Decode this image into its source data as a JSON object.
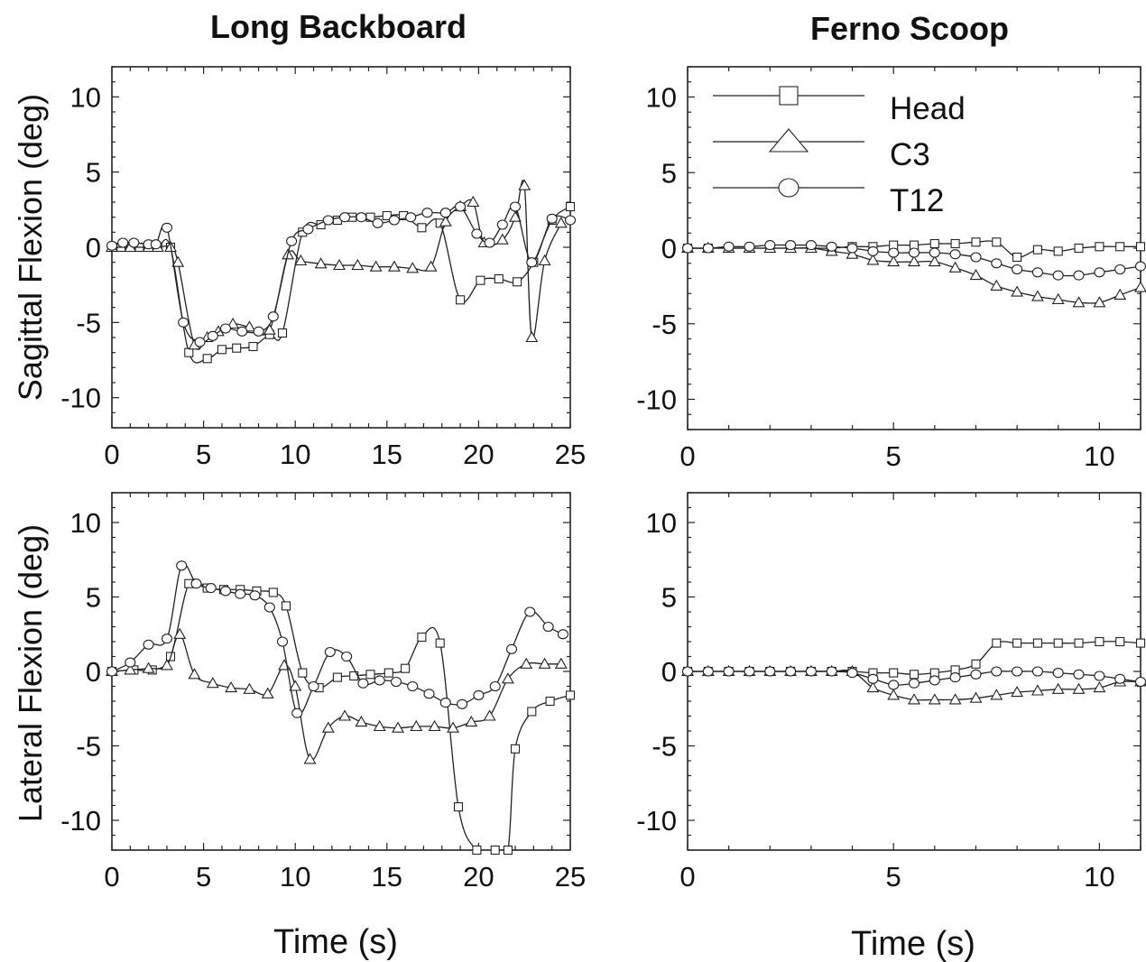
{
  "figure": {
    "col_titles": [
      "Long Backboard",
      "Ferno Scoop"
    ],
    "row_ylabels": [
      "Sagittal Flexion (deg)",
      "Lateral Flexion (deg)"
    ],
    "xlabel": "Time (s)"
  },
  "legend": {
    "entries": [
      {
        "label": "Head",
        "marker": "square"
      },
      {
        "label": "C3",
        "marker": "triangle"
      },
      {
        "label": "T12",
        "marker": "circle"
      }
    ]
  },
  "chart_data": [
    {
      "type": "line",
      "title": "Long Backboard",
      "xlabel": "",
      "ylabel": "Sagittal Flexion (deg)",
      "xlim": [
        0,
        25
      ],
      "ylim": [
        -12,
        12
      ],
      "xticks": [
        0,
        5,
        10,
        15,
        20,
        25
      ],
      "yticks": [
        10,
        5,
        0,
        -5,
        -10
      ],
      "series": [
        {
          "name": "Head",
          "marker": "square",
          "x": [
            0,
            0.5,
            1,
            1.5,
            2,
            2.5,
            3.2,
            4.2,
            5.2,
            6.0,
            6.8,
            7.7,
            8.6,
            9.3,
            10.4,
            11.4,
            12.3,
            13.1,
            14.1,
            15.0,
            15.9,
            16.9,
            17.9,
            19.0,
            20.1,
            21.1,
            22.1,
            23.0,
            24.0,
            25
          ],
          "y": [
            0,
            0,
            0,
            0,
            0,
            0,
            0,
            -7.0,
            -7.4,
            -6.8,
            -6.7,
            -6.6,
            -5.8,
            -5.7,
            1.0,
            1.5,
            1.8,
            2.0,
            2.0,
            2.1,
            2.1,
            1.3,
            1.6,
            -3.5,
            -2.2,
            -2.1,
            -2.3,
            -1.0,
            1.8,
            2.7
          ]
        },
        {
          "name": "C3",
          "marker": "triangle",
          "x": [
            0,
            1,
            2,
            2.5,
            3.2,
            3.6,
            4.5,
            5.2,
            5.8,
            6.6,
            7.5,
            8.6,
            9.6,
            10.3,
            11.4,
            12.4,
            13.4,
            14.4,
            15.4,
            16.4,
            17.4,
            18.2,
            19.0,
            19.7,
            20.3,
            21.3,
            22.0,
            22.5,
            22.9,
            23.6,
            24.5
          ],
          "y": [
            0,
            0,
            0,
            0,
            0,
            -1.0,
            -6.5,
            -6.0,
            -5.6,
            -5.1,
            -5.3,
            -5.5,
            -0.5,
            -0.9,
            -1.1,
            -1.2,
            -1.2,
            -1.3,
            -1.3,
            -1.4,
            -1.3,
            1.7,
            2.7,
            3.0,
            0.3,
            0.5,
            2.0,
            4.1,
            -6.0,
            -0.9,
            1.6
          ]
        },
        {
          "name": "T12",
          "marker": "circle",
          "x": [
            0,
            0.6,
            1.2,
            2.0,
            2.4,
            3.0,
            3.9,
            4.8,
            5.5,
            6.2,
            7.1,
            8.0,
            8.8,
            9.8,
            10.7,
            11.8,
            12.7,
            13.6,
            14.5,
            15.4,
            16.3,
            17.2,
            18.2,
            19.0,
            19.9,
            20.6,
            21.3,
            22.0,
            22.9,
            24.0,
            25
          ],
          "y": [
            0.1,
            0.3,
            0.3,
            0.2,
            0.2,
            1.3,
            -5.0,
            -6.3,
            -5.9,
            -5.4,
            -5.6,
            -5.6,
            -4.6,
            0.4,
            1.2,
            1.8,
            2.0,
            2.0,
            1.6,
            1.8,
            2.0,
            2.3,
            2.3,
            2.7,
            0.9,
            0.3,
            1.5,
            2.7,
            -1.0,
            1.9,
            1.8
          ]
        }
      ]
    },
    {
      "type": "line",
      "title": "Ferno Scoop",
      "xlabel": "",
      "ylabel": "",
      "xlim": [
        0,
        11
      ],
      "ylim": [
        -12,
        12
      ],
      "xticks": [
        0,
        5,
        10
      ],
      "yticks": [
        10,
        5,
        0,
        -5,
        -10
      ],
      "series": [
        {
          "name": "Head",
          "marker": "square",
          "x": [
            0,
            0.5,
            1,
            1.5,
            2,
            2.5,
            3,
            3.5,
            4,
            4.5,
            5,
            5.5,
            6,
            6.5,
            7,
            7.5,
            8,
            8.5,
            9,
            9.5,
            10,
            10.5,
            11
          ],
          "y": [
            0,
            0,
            0,
            0,
            0,
            0,
            0,
            0,
            0.1,
            0.1,
            0.2,
            0.2,
            0.3,
            0.3,
            0.4,
            0.4,
            -0.6,
            -0.1,
            -0.2,
            0.0,
            0.1,
            0.1,
            0.1
          ]
        },
        {
          "name": "C3",
          "marker": "triangle",
          "x": [
            0,
            0.5,
            1,
            1.5,
            2,
            2.5,
            3,
            3.5,
            4,
            4.5,
            5,
            5.5,
            6,
            6.5,
            7,
            7.5,
            8,
            8.5,
            9,
            9.5,
            10,
            10.5,
            11
          ],
          "y": [
            0,
            0,
            0,
            0,
            0,
            0,
            0,
            -0.2,
            -0.4,
            -0.8,
            -0.9,
            -0.9,
            -0.9,
            -1.3,
            -1.8,
            -2.5,
            -2.9,
            -3.2,
            -3.4,
            -3.6,
            -3.6,
            -3.1,
            -2.6
          ]
        },
        {
          "name": "T12",
          "marker": "circle",
          "x": [
            0,
            0.5,
            1,
            1.5,
            2,
            2.5,
            3,
            3.5,
            4,
            4.5,
            5,
            5.5,
            6,
            6.5,
            7,
            7.5,
            8,
            8.5,
            9,
            9.5,
            10,
            10.5,
            11
          ],
          "y": [
            0,
            0,
            0.1,
            0.1,
            0.2,
            0.2,
            0.2,
            0.1,
            0,
            -0.2,
            -0.3,
            -0.3,
            -0.3,
            -0.4,
            -0.6,
            -1.0,
            -1.4,
            -1.6,
            -1.8,
            -1.8,
            -1.6,
            -1.4,
            -1.2
          ]
        }
      ]
    },
    {
      "type": "line",
      "title": "",
      "xlabel": "Time (s)",
      "ylabel": "Lateral Flexion (deg)",
      "xlim": [
        0,
        25
      ],
      "ylim": [
        -12,
        12
      ],
      "xticks": [
        0,
        5,
        10,
        15,
        20,
        25
      ],
      "yticks": [
        10,
        5,
        0,
        -5,
        -10
      ],
      "series": [
        {
          "name": "Head",
          "marker": "square",
          "x": [
            0,
            1.2,
            2.2,
            3.2,
            4.2,
            5.2,
            6.1,
            7.0,
            7.9,
            8.8,
            9.5,
            10.4,
            11.3,
            12.3,
            13.2,
            14.1,
            15.1,
            16.0,
            16.9,
            17.9,
            18.9,
            19.9,
            20.9,
            21.6,
            22.0,
            22.9,
            23.9,
            25
          ],
          "y": [
            0,
            0.1,
            0.1,
            1.0,
            5.9,
            5.6,
            5.5,
            5.5,
            5.4,
            5.3,
            4.4,
            -0.1,
            -1.1,
            -0.4,
            -0.3,
            -0.2,
            -0.1,
            0.2,
            2.3,
            1.9,
            -9.1,
            -12.0,
            -12.0,
            -12.0,
            -5.2,
            -2.7,
            -2.0,
            -1.6
          ]
        },
        {
          "name": "C3",
          "marker": "triangle",
          "x": [
            0,
            1.0,
            2.0,
            3.0,
            3.7,
            4.5,
            5.5,
            6.5,
            7.5,
            8.5,
            9.4,
            10.0,
            10.8,
            11.8,
            12.7,
            13.6,
            14.6,
            15.6,
            16.6,
            17.6,
            18.6,
            19.6,
            20.6,
            21.6,
            22.6,
            23.6,
            24.5
          ],
          "y": [
            0,
            0.1,
            0.2,
            0.4,
            2.5,
            -0.2,
            -0.8,
            -1.1,
            -1.2,
            -1.5,
            0.4,
            -1.0,
            -5.9,
            -3.8,
            -3.0,
            -3.4,
            -3.7,
            -3.8,
            -3.7,
            -3.7,
            -3.8,
            -3.4,
            -3.0,
            -0.5,
            0.5,
            0.5,
            0.5
          ]
        },
        {
          "name": "T12",
          "marker": "circle",
          "x": [
            0,
            1.0,
            2.0,
            3.0,
            3.8,
            4.6,
            5.4,
            6.2,
            7.0,
            7.8,
            8.6,
            9.3,
            10.1,
            11.0,
            11.9,
            12.8,
            13.7,
            14.6,
            15.5,
            16.4,
            17.3,
            18.2,
            19.1,
            20.0,
            20.9,
            21.8,
            22.8,
            23.8,
            24.6
          ],
          "y": [
            0,
            0.6,
            1.8,
            2.2,
            7.1,
            5.9,
            5.6,
            5.4,
            5.2,
            5.1,
            4.3,
            2.0,
            -2.8,
            -1.0,
            1.3,
            1.0,
            -0.8,
            -0.6,
            -0.7,
            -1.0,
            -1.5,
            -2.1,
            -2.2,
            -1.6,
            -1.0,
            1.5,
            4.0,
            3.0,
            2.5
          ]
        }
      ]
    },
    {
      "type": "line",
      "title": "",
      "xlabel": "Time (s)",
      "ylabel": "",
      "xlim": [
        0,
        11
      ],
      "ylim": [
        -12,
        12
      ],
      "xticks": [
        0,
        5,
        10
      ],
      "yticks": [
        10,
        5,
        0,
        -5,
        -10
      ],
      "series": [
        {
          "name": "Head",
          "marker": "square",
          "x": [
            0,
            0.5,
            1,
            1.5,
            2,
            2.5,
            3,
            3.5,
            4,
            4.5,
            5,
            5.5,
            6,
            6.5,
            7,
            7.5,
            8,
            8.5,
            9,
            9.5,
            10,
            10.5,
            11
          ],
          "y": [
            0,
            0,
            0,
            0,
            0,
            0,
            0,
            0,
            0,
            -0.1,
            -0.1,
            -0.2,
            -0.1,
            0.1,
            0.5,
            1.9,
            1.9,
            1.9,
            1.9,
            1.9,
            2.0,
            2.0,
            1.9
          ]
        },
        {
          "name": "C3",
          "marker": "triangle",
          "x": [
            0,
            0.5,
            1,
            1.5,
            2,
            2.5,
            3,
            3.5,
            4,
            4.5,
            5,
            5.5,
            6,
            6.5,
            7,
            7.5,
            8,
            8.5,
            9,
            9.5,
            10,
            10.5,
            11
          ],
          "y": [
            0,
            0,
            0,
            0,
            0,
            0,
            0,
            0,
            0,
            -1.1,
            -1.6,
            -1.9,
            -1.9,
            -1.9,
            -1.8,
            -1.6,
            -1.4,
            -1.3,
            -1.2,
            -1.2,
            -1.1,
            -0.7,
            -0.7
          ]
        },
        {
          "name": "T12",
          "marker": "circle",
          "x": [
            0,
            0.5,
            1,
            1.5,
            2,
            2.5,
            3,
            3.5,
            4,
            4.5,
            5,
            5.5,
            6,
            6.5,
            7,
            7.5,
            8,
            8.5,
            9,
            9.5,
            10,
            10.5,
            11
          ],
          "y": [
            0,
            0,
            0,
            0,
            0,
            0,
            0,
            0,
            -0.1,
            -0.5,
            -0.9,
            -0.8,
            -0.6,
            -0.4,
            -0.2,
            0.0,
            0.0,
            0.0,
            -0.1,
            -0.2,
            -0.3,
            -0.5,
            -0.7
          ]
        }
      ]
    }
  ]
}
